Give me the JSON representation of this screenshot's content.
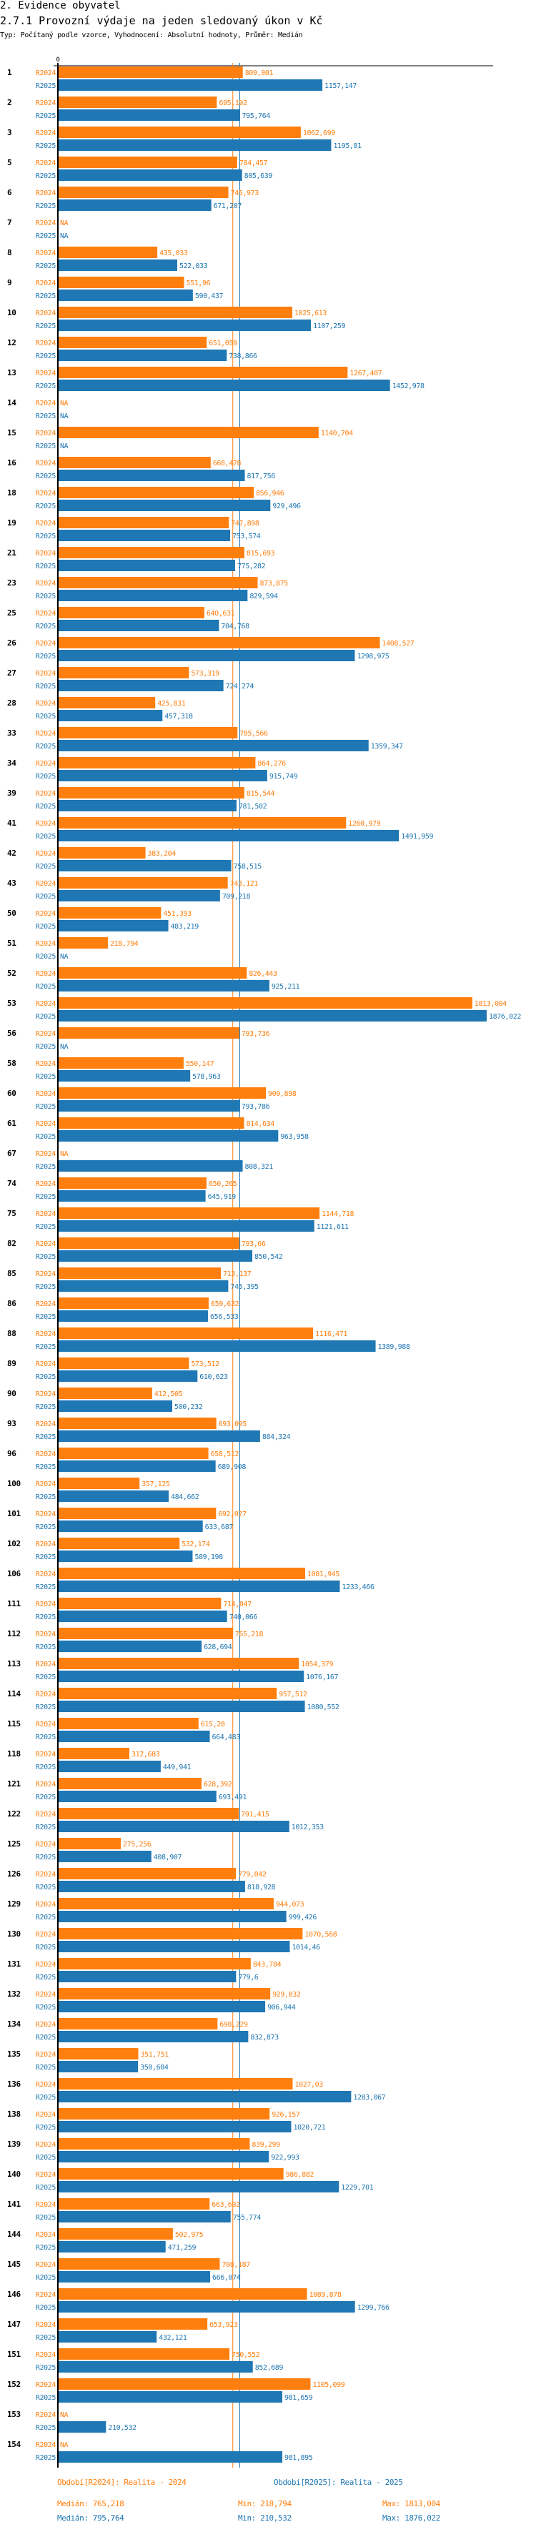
{
  "header": {
    "section": "2. Evidence obyvatel",
    "title": "2.7.1 Provozní výdaje na jeden sledovaný úkon v Kč",
    "subtitle": "Typ: Počítaný podle vzorce, Vyhodnocení: Absolutní hodnoty, Průměr: Medián"
  },
  "colors": {
    "R2024": "#ff7f0e",
    "R2025": "#1f77b4",
    "axis": "#000000"
  },
  "chart_data": {
    "type": "bar",
    "orientation": "horizontal",
    "title": "2.7.1 Provozní výdaje na jeden sledovaný úkon v Kč",
    "xlabel": "",
    "ylabel": "",
    "x_tick_labels": [
      "0"
    ],
    "xlim": [
      0,
      1876.022
    ],
    "grid": false,
    "legend": "bottom",
    "na_label": "NA",
    "series_names": [
      "R2024",
      "R2025"
    ],
    "reference_lines": [
      {
        "series": "R2024",
        "type": "median",
        "value": 765.218
      },
      {
        "series": "R2025",
        "type": "median",
        "value": 795.764
      }
    ],
    "categories": [
      "1",
      "2",
      "3",
      "5",
      "6",
      "7",
      "8",
      "9",
      "10",
      "12",
      "13",
      "14",
      "15",
      "16",
      "18",
      "19",
      "21",
      "23",
      "25",
      "26",
      "27",
      "28",
      "33",
      "34",
      "39",
      "41",
      "42",
      "43",
      "50",
      "51",
      "52",
      "53",
      "56",
      "58",
      "60",
      "61",
      "67",
      "74",
      "75",
      "82",
      "85",
      "86",
      "88",
      "89",
      "90",
      "93",
      "96",
      "100",
      "101",
      "102",
      "106",
      "111",
      "112",
      "113",
      "114",
      "115",
      "118",
      "121",
      "122",
      "125",
      "126",
      "129",
      "130",
      "131",
      "132",
      "134",
      "135",
      "136",
      "138",
      "139",
      "140",
      "141",
      "144",
      "145",
      "146",
      "147",
      "151",
      "152",
      "153",
      "154"
    ],
    "series": [
      {
        "name": "R2024",
        "values": [
          809.001,
          695.192,
          1062.699,
          784.457,
          745.973,
          null,
          435.033,
          551.96,
          1025.613,
          651.059,
          1267.407,
          null,
          1140.704,
          668.478,
          856.946,
          747.898,
          815.693,
          873.875,
          640.631,
          1408.527,
          573.319,
          425.831,
          785.566,
          864.276,
          815.544,
          1260.979,
          383.204,
          743.121,
          451.393,
          218.794,
          826.443,
          1813.004,
          793.736,
          550.147,
          909.898,
          814.634,
          null,
          650.265,
          1144.718,
          793.66,
          713.137,
          659.632,
          1116.471,
          573.512,
          412.505,
          693.095,
          658.512,
          357.125,
          692.027,
          532.174,
          1081.945,
          714.047,
          765.218,
          1054.379,
          957.512,
          615.28,
          312.683,
          628.392,
          791.415,
          275.256,
          779.042,
          944.073,
          1070.568,
          843.784,
          929.032,
          698.229,
          351.751,
          1027.03,
          926.157,
          839.299,
          986.882,
          663.692,
          502.975,
          708.187,
          1089.878,
          653.923,
          750.552,
          1105.099,
          null,
          null
        ]
      },
      {
        "name": "R2025",
        "values": [
          1157.147,
          795.764,
          1195.81,
          805.639,
          671.207,
          null,
          522.033,
          590.437,
          1107.259,
          738.866,
          1452.978,
          null,
          null,
          817.756,
          929.496,
          753.574,
          775.282,
          829.594,
          704.768,
          1298.975,
          724.274,
          457.318,
          1359.347,
          915.749,
          781.502,
          1491.959,
          758.515,
          709.218,
          483.219,
          null,
          925.211,
          1876.022,
          null,
          578.963,
          793.786,
          963.958,
          808.321,
          645.919,
          1121.611,
          850.542,
          745.395,
          656.533,
          1389.988,
          610.623,
          500.232,
          884.324,
          689.908,
          484.662,
          633.687,
          589.198,
          1233.466,
          740.066,
          628.694,
          1076.167,
          1080.552,
          664.483,
          449.941,
          693.491,
          1012.353,
          408.907,
          818.928,
          999.426,
          1014.46,
          779.6,
          906.944,
          832.873,
          350.604,
          1283.067,
          1020.721,
          922.993,
          1229.701,
          755.774,
          471.259,
          666.074,
          1299.766,
          432.121,
          852.689,
          981.659,
          210.532,
          981.895
        ]
      }
    ],
    "value_labels": {
      "R2024": [
        "809,001",
        "695,192",
        "1062,699",
        "784,457",
        "745,973",
        "NA",
        "435,033",
        "551,96",
        "1025,613",
        "651,059",
        "1267,407",
        "NA",
        "1140,704",
        "668,478",
        "856,946",
        "747,898",
        "815,693",
        "873,875",
        "640,631",
        "1408,527",
        "573,319",
        "425,831",
        "785,566",
        "864,276",
        "815,544",
        "1260,979",
        "383,204",
        "743,121",
        "451,393",
        "218,794",
        "826,443",
        "1813,004",
        "793,736",
        "550,147",
        "909,898",
        "814,634",
        "NA",
        "650,265",
        "1144,718",
        "793,66",
        "713,137",
        "659,632",
        "1116,471",
        "573,512",
        "412,505",
        "693,095",
        "658,512",
        "357,125",
        "692,027",
        "532,174",
        "1081,945",
        "714,047",
        "765,218",
        "1054,379",
        "957,512",
        "615,28",
        "312,683",
        "628,392",
        "791,415",
        "275,256",
        "779,042",
        "944,073",
        "1070,568",
        "843,784",
        "929,032",
        "698,229",
        "351,751",
        "1027,03",
        "926,157",
        "839,299",
        "986,882",
        "663,692",
        "502,975",
        "708,187",
        "1089,878",
        "653,923",
        "750,552",
        "1105,099",
        "NA",
        "NA"
      ],
      "R2025": [
        "1157,147",
        "795,764",
        "1195,81",
        "805,639",
        "671,207",
        "NA",
        "522,033",
        "590,437",
        "1107,259",
        "738,866",
        "1452,978",
        "NA",
        "NA",
        "817,756",
        "929,496",
        "753,574",
        "775,282",
        "829,594",
        "704,768",
        "1298,975",
        "724,274",
        "457,318",
        "1359,347",
        "915,749",
        "781,502",
        "1491,959",
        "758,515",
        "709,218",
        "483,219",
        "NA",
        "925,211",
        "1876,022",
        "NA",
        "578,963",
        "793,786",
        "963,958",
        "808,321",
        "645,919",
        "1121,611",
        "850,542",
        "745,395",
        "656,533",
        "1389,988",
        "610,623",
        "500,232",
        "884,324",
        "689,908",
        "484,662",
        "633,687",
        "589,198",
        "1233,466",
        "740,066",
        "628,694",
        "1076,167",
        "1080,552",
        "664,483",
        "449,941",
        "693,491",
        "1012,353",
        "408,907",
        "818,928",
        "999,426",
        "1014,46",
        "779,6",
        "906,944",
        "832,873",
        "350,604",
        "1283,067",
        "1020,721",
        "922,993",
        "1229,701",
        "755,774",
        "471,259",
        "666,074",
        "1299,766",
        "432,121",
        "852,689",
        "981,659",
        "210,532",
        "981,895"
      ]
    }
  },
  "footer": {
    "legend_r2024": "Období[R2024]: Realita - 2024",
    "legend_r2025": "Období[R2025]: Realita - 2025",
    "r2024": {
      "median": "Medián: 765,218",
      "min": "Min: 218,794",
      "max": "Max: 1813,004"
    },
    "r2025": {
      "median": "Medián: 795,764",
      "min": "Min: 210,532",
      "max": "Max: 1876,022"
    }
  }
}
